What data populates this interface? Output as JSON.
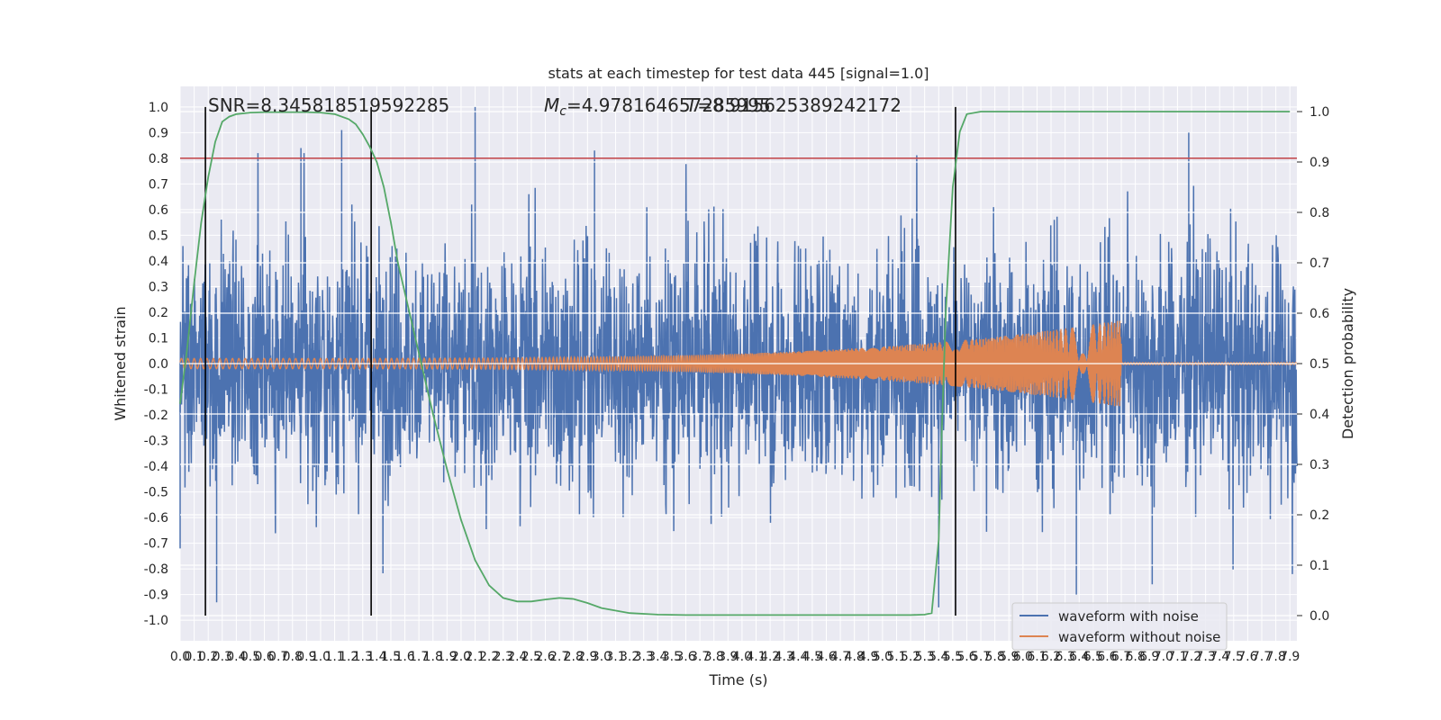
{
  "chart_data": {
    "type": "line",
    "title": "stats at each timestep for test data 445 [signal=1.0]",
    "xlabel": "Time (s)",
    "ylabel": "Whitened strain",
    "ylabel_right": "Detection probability",
    "xlim": [
      0.0,
      7.95
    ],
    "ylim": [
      -1.08,
      1.08
    ],
    "ylim_right": [
      -0.05,
      1.05
    ],
    "x_ticks": [
      0.0,
      0.1,
      0.2,
      0.3,
      0.4,
      0.5,
      0.6,
      0.7,
      0.8,
      0.9,
      1.0,
      1.1,
      1.2,
      1.3,
      1.4,
      1.5,
      1.6,
      1.7,
      1.8,
      1.9,
      2.0,
      2.1,
      2.2,
      2.3,
      2.4,
      2.5,
      2.6,
      2.7,
      2.8,
      2.9,
      3.0,
      3.1,
      3.2,
      3.3,
      3.4,
      3.5,
      3.6,
      3.7,
      3.8,
      3.9,
      4.0,
      4.1,
      4.2,
      4.3,
      4.4,
      4.5,
      4.6,
      4.7,
      4.8,
      4.9,
      5.0,
      5.1,
      5.2,
      5.3,
      5.4,
      5.5,
      5.6,
      5.7,
      5.8,
      5.9,
      6.0,
      6.1,
      6.2,
      6.3,
      6.4,
      6.5,
      6.6,
      6.7,
      6.8,
      6.9,
      7.0,
      7.1,
      7.2,
      7.3,
      7.4,
      7.5,
      7.6,
      7.7,
      7.8,
      7.9
    ],
    "y_ticks": [
      -1.0,
      -0.9,
      -0.8,
      -0.7,
      -0.6,
      -0.5,
      -0.4,
      -0.3,
      -0.2,
      -0.1,
      0.0,
      0.1,
      0.2,
      0.3,
      0.4,
      0.5,
      0.6,
      0.7,
      0.8,
      0.9,
      1.0
    ],
    "y_ticks_right": [
      0.0,
      0.1,
      0.2,
      0.3,
      0.4,
      0.5,
      0.6,
      0.7,
      0.8,
      0.9,
      1.0
    ],
    "grid": true,
    "legend_position": "lower-right",
    "annotations": {
      "snr": "SNR=8.345818519592285",
      "mc_prefix": "M",
      "mc_subscript": "c",
      "mc_value": "=4.978164657285995",
      "t_value": "=8.915625389242172",
      "t_prefix": "T"
    },
    "threshold": 0.8,
    "vertical_markers": [
      0.18,
      1.36,
      5.52
    ],
    "series": [
      {
        "name": "waveform with noise",
        "color": "#4c72b0",
        "kind": "noisy-strain",
        "envelope_typical": 0.45,
        "peaks": [
          {
            "x": 2.1,
            "y": 1.0
          },
          {
            "x": 1.15,
            "y": 0.91
          },
          {
            "x": 7.18,
            "y": 0.9
          },
          {
            "x": 0.86,
            "y": 0.84
          },
          {
            "x": 2.95,
            "y": 0.83
          },
          {
            "x": 0.26,
            "y": -0.93
          },
          {
            "x": 5.4,
            "y": -0.95
          },
          {
            "x": 6.38,
            "y": -0.9
          },
          {
            "x": 6.92,
            "y": -0.86
          },
          {
            "x": 0.0,
            "y": -0.72
          }
        ]
      },
      {
        "name": "waveform without noise",
        "color": "#dd8452",
        "kind": "chirp",
        "start": 0.0,
        "merger": 6.7,
        "amp_start": 0.02,
        "amp_merger": 0.17
      },
      {
        "name": "",
        "color": "#55a868",
        "kind": "detection-probability",
        "axis": "right",
        "x": [
          0.0,
          0.05,
          0.1,
          0.15,
          0.2,
          0.25,
          0.3,
          0.35,
          0.4,
          0.5,
          0.6,
          0.7,
          0.8,
          0.9,
          1.0,
          1.1,
          1.2,
          1.25,
          1.3,
          1.35,
          1.4,
          1.45,
          1.5,
          1.55,
          1.6,
          1.7,
          1.8,
          1.9,
          2.0,
          2.1,
          2.2,
          2.3,
          2.4,
          2.5,
          2.6,
          2.7,
          2.8,
          2.9,
          3.0,
          3.2,
          3.4,
          3.6,
          3.8,
          4.0,
          4.5,
          5.0,
          5.2,
          5.3,
          5.35,
          5.4,
          5.42,
          5.45,
          5.5,
          5.55,
          5.6,
          5.7,
          6.0,
          7.0,
          7.9
        ],
        "y": [
          0.42,
          0.53,
          0.66,
          0.78,
          0.87,
          0.94,
          0.98,
          0.99,
          0.995,
          0.998,
          0.999,
          0.999,
          0.999,
          0.999,
          0.998,
          0.995,
          0.985,
          0.975,
          0.955,
          0.93,
          0.9,
          0.85,
          0.78,
          0.7,
          0.64,
          0.52,
          0.4,
          0.29,
          0.19,
          0.11,
          0.06,
          0.035,
          0.028,
          0.028,
          0.032,
          0.035,
          0.033,
          0.025,
          0.015,
          0.005,
          0.002,
          0.001,
          0.001,
          0.001,
          0.001,
          0.001,
          0.001,
          0.002,
          0.005,
          0.15,
          0.35,
          0.6,
          0.85,
          0.96,
          0.995,
          1.0,
          1.0,
          1.0,
          1.0
        ]
      }
    ]
  }
}
